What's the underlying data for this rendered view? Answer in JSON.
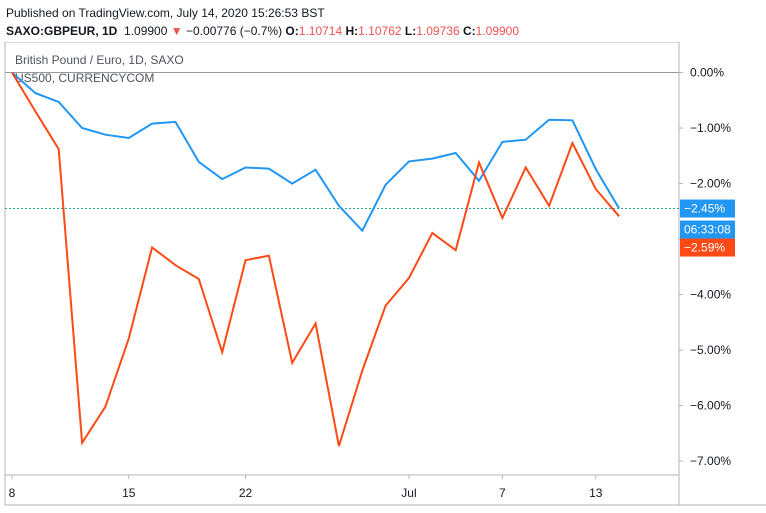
{
  "header": {
    "published": "Published on TradingView.com, July 14, 2020 15:26:53 BST",
    "symbol": "SAXO:GBPEUR, 1D",
    "last": "1.09900",
    "down_arrow": "▼",
    "change": "−0.00776 (−0.7%)",
    "o_label": "O:",
    "o_value": "1.10714",
    "h_label": "H:",
    "h_value": "1.10762",
    "l_label": "L:",
    "l_value": "1.09736",
    "c_label": "C:",
    "c_value": "1.09900"
  },
  "chart_data": {
    "type": "line",
    "legend": [
      "British Pound / Euro, 1D, SAXO",
      "US500, CURRENCYCOM"
    ],
    "x_tick_labels": [
      "8",
      "15",
      "22",
      "Jul",
      "7",
      "13"
    ],
    "y_tick_labels": [
      "0.00%",
      "−1.00%",
      "−2.00%",
      "−3.00%",
      "−4.00%",
      "−5.00%",
      "−6.00%",
      "−7.00%"
    ],
    "y_ticks": [
      0,
      -1,
      -2,
      -3,
      -4,
      -5,
      -6,
      -7
    ],
    "ylim": [
      0.55,
      -7.25
    ],
    "y_unit": "%",
    "grid": false,
    "series": [
      {
        "name": "British Pound / Euro, 1D, SAXO",
        "color": "#2196f3",
        "label": "−2.45%",
        "last_value": -2.45,
        "values": [
          0.0,
          -0.37,
          -0.53,
          -1.0,
          -1.12,
          -1.18,
          -0.92,
          -0.89,
          -1.61,
          -1.92,
          -1.71,
          -1.73,
          -2.0,
          -1.75,
          -2.4,
          -2.85,
          -2.02,
          -1.6,
          -1.55,
          -1.45,
          -1.95,
          -1.25,
          -1.21,
          -0.85,
          -0.86,
          -1.74,
          -2.45
        ]
      },
      {
        "name": "US500, CURRENCYCOM",
        "color": "#ff4a16",
        "label": "−2.59%",
        "last_value": -2.59,
        "values": [
          0.0,
          -0.7,
          -1.38,
          -6.67,
          -6.02,
          -4.79,
          -3.15,
          -3.47,
          -3.72,
          -5.04,
          -3.38,
          -3.3,
          -5.23,
          -4.52,
          -6.73,
          -5.37,
          -4.2,
          -3.7,
          -2.89,
          -3.2,
          -1.62,
          -2.62,
          -1.71,
          -2.4,
          -1.27,
          -2.1,
          -2.59
        ]
      }
    ],
    "last_line_value": -2.45,
    "countdown": "06:33:08"
  }
}
